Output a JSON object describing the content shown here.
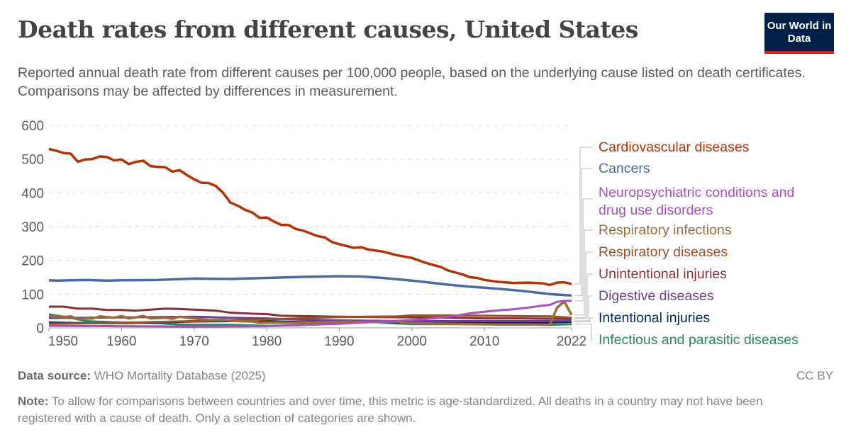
{
  "header": {
    "title": "Death rates from different causes, United States",
    "subtitle": "Reported annual death rate from different causes per 100,000 people, based on the underlying cause listed on death certificates. Comparisons may be affected by differences in measurement.",
    "logo": "Our World in Data"
  },
  "footer": {
    "source_label": "Data source:",
    "source": "WHO Mortality Database (2025)",
    "license": "CC BY",
    "note_label": "Note:",
    "note": "To allow for comparisons between countries and over time, this metric is age-standardized. All deaths in a country may not have been registered with a cause of death. Only a selection of categories are shown."
  },
  "chart_data": {
    "type": "line",
    "title": "",
    "xlabel": "",
    "ylabel": "",
    "xlim": [
      1950,
      2022
    ],
    "ylim": [
      0,
      600
    ],
    "yticks": [
      0,
      100,
      200,
      300,
      400,
      500,
      600
    ],
    "xticks": [
      1950,
      1960,
      1970,
      1980,
      1990,
      2000,
      2010,
      2022
    ],
    "grid": "horizontal dashed",
    "legend": "right (line-end labels)",
    "series": [
      {
        "name": "Cardiovascular diseases",
        "color": "#b13507",
        "points": [
          [
            1950,
            530
          ],
          [
            1951,
            525
          ],
          [
            1952,
            518
          ],
          [
            1953,
            516
          ],
          [
            1954,
            492
          ],
          [
            1955,
            499
          ],
          [
            1956,
            500
          ],
          [
            1957,
            508
          ],
          [
            1958,
            506
          ],
          [
            1959,
            496
          ],
          [
            1960,
            499
          ],
          [
            1961,
            485
          ],
          [
            1962,
            492
          ],
          [
            1963,
            495
          ],
          [
            1964,
            479
          ],
          [
            1965,
            477
          ],
          [
            1966,
            476
          ],
          [
            1967,
            463
          ],
          [
            1968,
            467
          ],
          [
            1969,
            453
          ],
          [
            1970,
            440
          ],
          [
            1971,
            430
          ],
          [
            1972,
            429
          ],
          [
            1973,
            420
          ],
          [
            1974,
            400
          ],
          [
            1975,
            371
          ],
          [
            1976,
            362
          ],
          [
            1977,
            350
          ],
          [
            1978,
            342
          ],
          [
            1979,
            326
          ],
          [
            1980,
            327
          ],
          [
            1981,
            315
          ],
          [
            1982,
            305
          ],
          [
            1983,
            305
          ],
          [
            1984,
            293
          ],
          [
            1985,
            288
          ],
          [
            1986,
            280
          ],
          [
            1987,
            272
          ],
          [
            1988,
            268
          ],
          [
            1989,
            254
          ],
          [
            1990,
            248
          ],
          [
            1992,
            237
          ],
          [
            1993,
            239
          ],
          [
            1994,
            232
          ],
          [
            1996,
            226
          ],
          [
            1998,
            215
          ],
          [
            2000,
            207
          ],
          [
            2002,
            192
          ],
          [
            2004,
            180
          ],
          [
            2005,
            170
          ],
          [
            2007,
            158
          ],
          [
            2008,
            150
          ],
          [
            2009,
            148
          ],
          [
            2010,
            142
          ],
          [
            2012,
            136
          ],
          [
            2014,
            133
          ],
          [
            2016,
            134
          ],
          [
            2018,
            132
          ],
          [
            2019,
            127
          ],
          [
            2020,
            134
          ],
          [
            2021,
            135
          ],
          [
            2022,
            130
          ]
        ]
      },
      {
        "name": "Cancers",
        "color": "#4c6a9c",
        "points": [
          [
            1950,
            141
          ],
          [
            1951,
            140
          ],
          [
            1955,
            142
          ],
          [
            1958,
            140
          ],
          [
            1960,
            141
          ],
          [
            1965,
            142
          ],
          [
            1970,
            146
          ],
          [
            1975,
            145
          ],
          [
            1980,
            148
          ],
          [
            1985,
            151
          ],
          [
            1990,
            153
          ],
          [
            1993,
            152
          ],
          [
            1996,
            148
          ],
          [
            1998,
            144
          ],
          [
            2000,
            140
          ],
          [
            2005,
            128
          ],
          [
            2008,
            122
          ],
          [
            2010,
            119
          ],
          [
            2015,
            110
          ],
          [
            2019,
            100
          ],
          [
            2022,
            96
          ]
        ]
      },
      {
        "name": "Neuropsychiatric conditions and drug use disorders",
        "color": "#a652ba",
        "points": [
          [
            1950,
            6
          ],
          [
            1960,
            5
          ],
          [
            1970,
            4
          ],
          [
            1980,
            5
          ],
          [
            1990,
            12
          ],
          [
            1995,
            18
          ],
          [
            2000,
            23
          ],
          [
            2004,
            30
          ],
          [
            2006,
            36
          ],
          [
            2008,
            43
          ],
          [
            2010,
            48
          ],
          [
            2012,
            52
          ],
          [
            2014,
            55
          ],
          [
            2016,
            60
          ],
          [
            2018,
            66
          ],
          [
            2019,
            68
          ],
          [
            2020,
            77
          ],
          [
            2021,
            80
          ],
          [
            2022,
            80
          ]
        ]
      },
      {
        "name": "Respiratory infections",
        "color": "#996d39",
        "points": [
          [
            1950,
            35
          ],
          [
            1952,
            32
          ],
          [
            1953,
            34
          ],
          [
            1954,
            26
          ],
          [
            1956,
            28
          ],
          [
            1957,
            34
          ],
          [
            1959,
            30
          ],
          [
            1960,
            35
          ],
          [
            1961,
            28
          ],
          [
            1963,
            35
          ],
          [
            1964,
            28
          ],
          [
            1966,
            30
          ],
          [
            1967,
            27
          ],
          [
            1968,
            33
          ],
          [
            1970,
            28
          ],
          [
            1972,
            23
          ],
          [
            1974,
            23
          ],
          [
            1976,
            20
          ],
          [
            1978,
            19
          ],
          [
            1979,
            15
          ],
          [
            1981,
            16
          ],
          [
            1983,
            15
          ],
          [
            1985,
            15
          ],
          [
            1990,
            18
          ],
          [
            1995,
            18
          ],
          [
            1998,
            19
          ],
          [
            1999,
            14
          ],
          [
            2002,
            13
          ],
          [
            2008,
            11
          ],
          [
            2012,
            10
          ],
          [
            2016,
            10
          ],
          [
            2019,
            9
          ],
          [
            2020,
            60
          ],
          [
            2021,
            78
          ],
          [
            2022,
            38
          ]
        ]
      },
      {
        "name": "Respiratory diseases",
        "color": "#9a5129",
        "points": [
          [
            1950,
            12
          ],
          [
            1960,
            15
          ],
          [
            1970,
            20
          ],
          [
            1980,
            25
          ],
          [
            1990,
            32
          ],
          [
            1998,
            34
          ],
          [
            2000,
            37
          ],
          [
            2005,
            37
          ],
          [
            2010,
            36
          ],
          [
            2015,
            35
          ],
          [
            2019,
            34
          ],
          [
            2022,
            30
          ]
        ]
      },
      {
        "name": "Unintentional injuries",
        "color": "#883039",
        "points": [
          [
            1950,
            63
          ],
          [
            1952,
            63
          ],
          [
            1954,
            57
          ],
          [
            1956,
            57
          ],
          [
            1958,
            53
          ],
          [
            1960,
            53
          ],
          [
            1962,
            51
          ],
          [
            1964,
            54
          ],
          [
            1966,
            57
          ],
          [
            1968,
            56
          ],
          [
            1970,
            54
          ],
          [
            1972,
            52
          ],
          [
            1973,
            51
          ],
          [
            1975,
            45
          ],
          [
            1978,
            42
          ],
          [
            1980,
            41
          ],
          [
            1982,
            36
          ],
          [
            1985,
            35
          ],
          [
            1990,
            33
          ],
          [
            1995,
            32
          ],
          [
            2000,
            31
          ],
          [
            2005,
            30
          ],
          [
            2010,
            28
          ],
          [
            2015,
            28
          ],
          [
            2019,
            27
          ],
          [
            2022,
            27
          ]
        ]
      },
      {
        "name": "Digestive diseases",
        "color": "#6d3e91",
        "points": [
          [
            1950,
            29
          ],
          [
            1955,
            30
          ],
          [
            1960,
            31
          ],
          [
            1965,
            32
          ],
          [
            1970,
            33
          ],
          [
            1975,
            30
          ],
          [
            1980,
            28
          ],
          [
            1985,
            24
          ],
          [
            1990,
            22
          ],
          [
            1995,
            21
          ],
          [
            2000,
            20
          ],
          [
            2010,
            20
          ],
          [
            2019,
            20
          ],
          [
            2022,
            21
          ]
        ]
      },
      {
        "name": "Intentional injuries",
        "color": "#00295b",
        "points": [
          [
            1950,
            16
          ],
          [
            1955,
            14
          ],
          [
            1960,
            14
          ],
          [
            1965,
            16
          ],
          [
            1970,
            19
          ],
          [
            1975,
            20
          ],
          [
            1980,
            20
          ],
          [
            1985,
            17
          ],
          [
            1990,
            19
          ],
          [
            1995,
            18
          ],
          [
            2000,
            15
          ],
          [
            2010,
            15
          ],
          [
            2019,
            16
          ],
          [
            2022,
            18
          ]
        ]
      },
      {
        "name": "Infectious and parasitic diseases",
        "color": "#2c8465",
        "points": [
          [
            1950,
            40
          ],
          [
            1953,
            30
          ],
          [
            1955,
            20
          ],
          [
            1960,
            16
          ],
          [
            1965,
            14
          ],
          [
            1968,
            10
          ],
          [
            1970,
            9
          ],
          [
            1975,
            9
          ],
          [
            1980,
            6
          ],
          [
            1985,
            8
          ],
          [
            1990,
            15
          ],
          [
            1995,
            17
          ],
          [
            1998,
            13
          ],
          [
            2000,
            11
          ],
          [
            2010,
            11
          ],
          [
            2019,
            9
          ],
          [
            2022,
            11
          ]
        ]
      }
    ]
  }
}
